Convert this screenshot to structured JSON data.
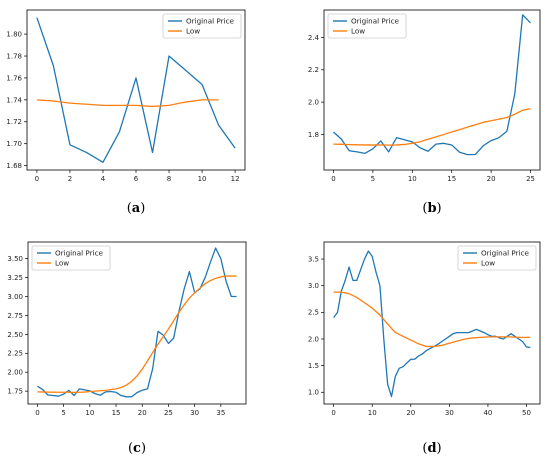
{
  "chart_data": [
    {
      "type": "line",
      "panel_label": "a",
      "legend_position": "upper-right",
      "xlim": [
        -0.6,
        12.6
      ],
      "ylim": [
        1.676,
        1.822
      ],
      "xticks": [
        0,
        2,
        4,
        6,
        8,
        10,
        12
      ],
      "yticks": [
        1.68,
        1.7,
        1.72,
        1.74,
        1.76,
        1.78,
        1.8
      ],
      "ytick_decimals": 2,
      "series": [
        {
          "name": "Original Price",
          "color": "#1f77b4",
          "x": [
            0,
            1,
            2,
            3,
            4,
            5,
            6,
            7,
            8,
            9,
            10,
            11,
            12
          ],
          "y": [
            1.815,
            1.771,
            1.699,
            1.692,
            1.683,
            1.711,
            1.76,
            1.692,
            1.78,
            1.767,
            1.754,
            1.717,
            1.696
          ]
        },
        {
          "name": "Low",
          "color": "#ff7f0e",
          "x": [
            0,
            1,
            2,
            3,
            4,
            5,
            6,
            7,
            8,
            9,
            10,
            11
          ],
          "y": [
            1.74,
            1.739,
            1.737,
            1.736,
            1.735,
            1.735,
            1.735,
            1.734,
            1.735,
            1.738,
            1.74,
            1.74
          ]
        }
      ]
    },
    {
      "type": "line",
      "panel_label": "b",
      "legend_position": "upper-left",
      "xlim": [
        -1.2,
        26.2
      ],
      "ylim": [
        1.58,
        2.57
      ],
      "xticks": [
        0,
        5,
        10,
        15,
        20,
        25
      ],
      "yticks": [
        1.8,
        2.0,
        2.2,
        2.4
      ],
      "ytick_decimals": 1,
      "series": [
        {
          "name": "Original Price",
          "color": "#1f77b4",
          "x": [
            0,
            1,
            2,
            3,
            4,
            5,
            6,
            7,
            8,
            9,
            10,
            11,
            12,
            13,
            14,
            15,
            16,
            17,
            18,
            19,
            20,
            21,
            22,
            23,
            24,
            25
          ],
          "y": [
            1.815,
            1.771,
            1.699,
            1.692,
            1.683,
            1.711,
            1.76,
            1.692,
            1.78,
            1.767,
            1.754,
            1.717,
            1.696,
            1.74,
            1.745,
            1.735,
            1.69,
            1.675,
            1.676,
            1.73,
            1.762,
            1.78,
            1.82,
            2.05,
            2.54,
            2.49
          ]
        },
        {
          "name": "Low",
          "color": "#ff7f0e",
          "x": [
            0,
            1,
            2,
            3,
            4,
            5,
            6,
            7,
            8,
            9,
            10,
            11,
            12,
            13,
            14,
            15,
            16,
            17,
            18,
            19,
            20,
            21,
            22,
            23,
            24,
            25
          ],
          "y": [
            1.74,
            1.739,
            1.737,
            1.736,
            1.735,
            1.735,
            1.735,
            1.734,
            1.735,
            1.738,
            1.745,
            1.755,
            1.77,
            1.785,
            1.8,
            1.815,
            1.83,
            1.845,
            1.86,
            1.875,
            1.885,
            1.895,
            1.905,
            1.925,
            1.95,
            1.96
          ]
        }
      ]
    },
    {
      "type": "line",
      "panel_label": "c",
      "legend_position": "upper-left",
      "xlim": [
        -1.8,
        39.8
      ],
      "ylim": [
        1.58,
        3.72
      ],
      "xticks": [
        0,
        5,
        10,
        15,
        20,
        25,
        30,
        35
      ],
      "yticks": [
        1.75,
        2.0,
        2.25,
        2.5,
        2.75,
        3.0,
        3.25,
        3.5
      ],
      "ytick_decimals": 2,
      "series": [
        {
          "name": "Original Price",
          "color": "#1f77b4",
          "x": [
            0,
            1,
            2,
            3,
            4,
            5,
            6,
            7,
            8,
            9,
            10,
            11,
            12,
            13,
            14,
            15,
            16,
            17,
            18,
            19,
            20,
            21,
            22,
            23,
            24,
            25,
            26,
            27,
            28,
            29,
            30,
            31,
            32,
            33,
            34,
            35,
            36,
            37,
            38
          ],
          "y": [
            1.815,
            1.771,
            1.699,
            1.692,
            1.683,
            1.711,
            1.76,
            1.692,
            1.78,
            1.767,
            1.754,
            1.717,
            1.696,
            1.74,
            1.745,
            1.735,
            1.69,
            1.675,
            1.676,
            1.73,
            1.762,
            1.78,
            2.05,
            2.54,
            2.49,
            2.38,
            2.45,
            2.8,
            3.1,
            3.33,
            3.05,
            3.1,
            3.25,
            3.45,
            3.64,
            3.5,
            3.2,
            3.0,
            3.0
          ]
        },
        {
          "name": "Low",
          "color": "#ff7f0e",
          "x": [
            0,
            1,
            2,
            3,
            4,
            5,
            6,
            7,
            8,
            9,
            10,
            11,
            12,
            13,
            14,
            15,
            16,
            17,
            18,
            19,
            20,
            21,
            22,
            23,
            24,
            25,
            26,
            27,
            28,
            29,
            30,
            31,
            32,
            33,
            34,
            35,
            36,
            37,
            38
          ],
          "y": [
            1.74,
            1.739,
            1.737,
            1.736,
            1.735,
            1.735,
            1.735,
            1.734,
            1.735,
            1.738,
            1.745,
            1.75,
            1.755,
            1.76,
            1.77,
            1.78,
            1.8,
            1.83,
            1.88,
            1.95,
            2.04,
            2.15,
            2.26,
            2.37,
            2.47,
            2.57,
            2.68,
            2.79,
            2.89,
            2.98,
            3.05,
            3.11,
            3.17,
            3.21,
            3.24,
            3.26,
            3.27,
            3.27,
            3.27
          ]
        }
      ]
    },
    {
      "type": "line",
      "panel_label": "d",
      "legend_position": "upper-right",
      "xlim": [
        -2.5,
        53.5
      ],
      "ylim": [
        0.78,
        3.82
      ],
      "xticks": [
        0,
        10,
        20,
        30,
        40,
        50
      ],
      "yticks": [
        1.0,
        1.5,
        2.0,
        2.5,
        3.0,
        3.5
      ],
      "ytick_decimals": 1,
      "series": [
        {
          "name": "Original Price",
          "color": "#1f77b4",
          "x": [
            0,
            1,
            2,
            3,
            4,
            5,
            6,
            7,
            8,
            9,
            10,
            11,
            12,
            13,
            14,
            15,
            16,
            17,
            18,
            19,
            20,
            21,
            22,
            23,
            24,
            25,
            26,
            27,
            28,
            29,
            30,
            31,
            32,
            33,
            34,
            35,
            36,
            37,
            38,
            39,
            40,
            41,
            42,
            43,
            44,
            45,
            46,
            47,
            48,
            49,
            50,
            51
          ],
          "y": [
            2.4,
            2.5,
            2.9,
            3.1,
            3.35,
            3.1,
            3.1,
            3.3,
            3.5,
            3.65,
            3.55,
            3.25,
            3.0,
            2.0,
            1.15,
            0.92,
            1.3,
            1.45,
            1.48,
            1.55,
            1.62,
            1.62,
            1.68,
            1.72,
            1.78,
            1.82,
            1.86,
            1.9,
            1.95,
            2.0,
            2.05,
            2.1,
            2.12,
            2.12,
            2.12,
            2.12,
            2.15,
            2.18,
            2.15,
            2.12,
            2.08,
            2.05,
            2.05,
            2.02,
            2.0,
            2.05,
            2.1,
            2.05,
            2.0,
            1.95,
            1.85,
            1.84
          ]
        },
        {
          "name": "Low",
          "color": "#ff7f0e",
          "x": [
            0,
            2,
            4,
            6,
            8,
            10,
            12,
            14,
            16,
            18,
            20,
            22,
            24,
            26,
            28,
            30,
            32,
            34,
            36,
            38,
            40,
            42,
            44,
            46,
            48,
            50,
            51
          ],
          "y": [
            2.88,
            2.88,
            2.85,
            2.78,
            2.68,
            2.58,
            2.45,
            2.28,
            2.12,
            2.05,
            1.98,
            1.91,
            1.86,
            1.86,
            1.88,
            1.92,
            1.96,
            2.0,
            2.02,
            2.03,
            2.04,
            2.04,
            2.04,
            2.04,
            2.03,
            2.03,
            2.03
          ]
        }
      ]
    }
  ]
}
